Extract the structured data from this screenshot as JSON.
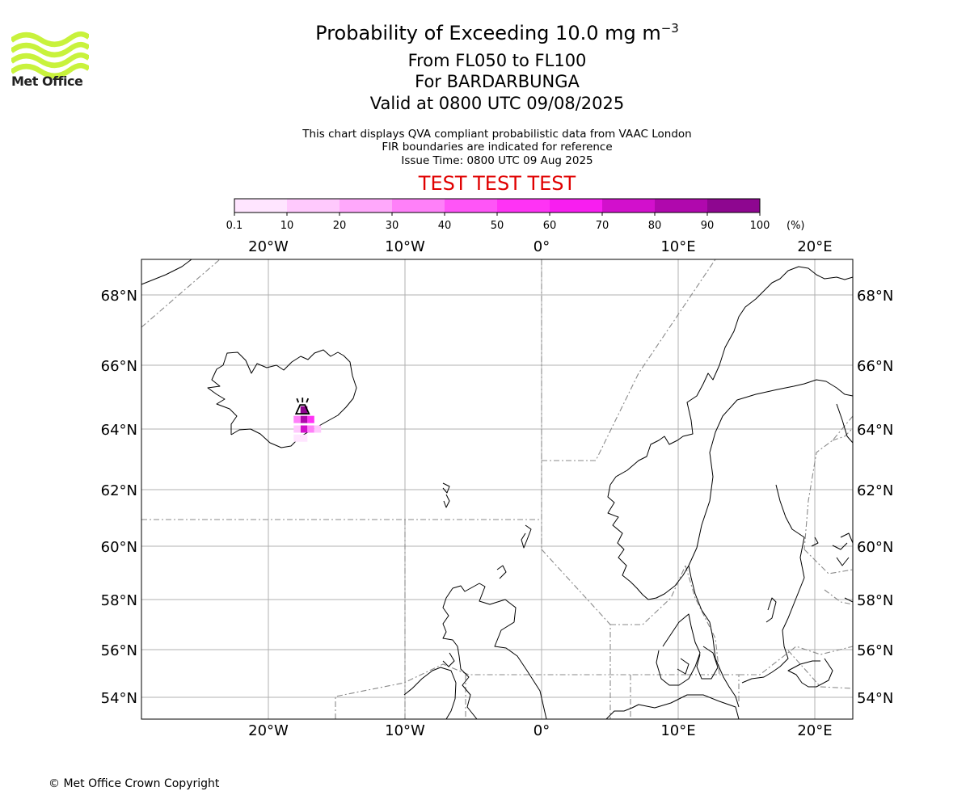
{
  "logo": {
    "text": "Met Office",
    "color": "#c8f23c"
  },
  "titles": {
    "main": "Probability of Exceeding 10.0 mg m",
    "main_superscript": "−3",
    "levels": "From FL050 to FL100",
    "volcano": "For BARDARBUNGA",
    "valid": "Valid at 0800 UTC 09/08/2025"
  },
  "subtitles": {
    "line1": "This chart displays QVA compliant probabilistic data from VAAC London",
    "line2": "FIR boundaries are indicated for reference",
    "line3": "Issue Time: 0800 UTC 09 Aug 2025"
  },
  "warning": {
    "text": "TEST TEST TEST",
    "color": "#e00000"
  },
  "colorbar": {
    "ticks": [
      "0.1",
      "10",
      "20",
      "30",
      "40",
      "50",
      "60",
      "70",
      "80",
      "90",
      "100"
    ],
    "unit": "(%)",
    "colors": [
      "#ffe5ff",
      "#ffc9fd",
      "#ffa8fb",
      "#ff80f9",
      "#ff55f7",
      "#ff33f5",
      "#f81ef0",
      "#d210cc",
      "#b008ad",
      "#8e0690",
      "#6a0566"
    ]
  },
  "map": {
    "lon_labels": [
      "20°W",
      "10°W",
      "0°",
      "10°E",
      "20°E"
    ],
    "lat_labels": [
      "68°N",
      "66°N",
      "64°N",
      "62°N",
      "60°N",
      "58°N",
      "56°N",
      "54°N"
    ],
    "gridlines": true,
    "volcano_name": "BARDARBUNGA",
    "ash_cells_probability_percent": [
      {
        "lon": -17.4,
        "lat": 64.6,
        "p": 92
      },
      {
        "lon": -17.4,
        "lat": 64.3,
        "p": 88
      },
      {
        "lon": -16.9,
        "lat": 64.3,
        "p": 55
      },
      {
        "lon": -17.9,
        "lat": 64.3,
        "p": 30
      },
      {
        "lon": -17.4,
        "lat": 64.0,
        "p": 75
      },
      {
        "lon": -16.9,
        "lat": 64.0,
        "p": 35
      },
      {
        "lon": -17.9,
        "lat": 64.0,
        "p": 18
      },
      {
        "lon": -16.4,
        "lat": 64.0,
        "p": 12
      },
      {
        "lon": -17.4,
        "lat": 63.7,
        "p": 8
      },
      {
        "lon": -17.9,
        "lat": 63.7,
        "p": 5
      }
    ]
  },
  "footer": {
    "copyright": "© Met Office Crown Copyright"
  }
}
